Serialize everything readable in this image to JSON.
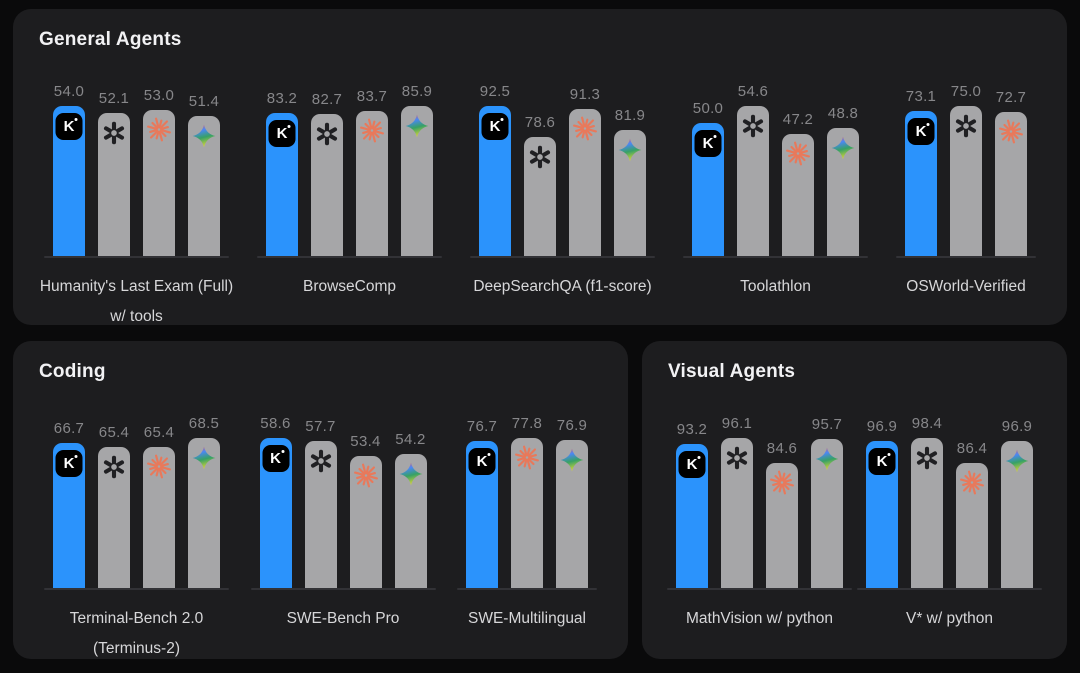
{
  "colors": {
    "page_background": "#0a0a0b",
    "panel_background": "#1d1d1f",
    "kimi_bar_blue": "#2b93fc",
    "default_bar_gray": "#a6a6a8",
    "value_label_gray": "#87878a",
    "benchmark_label_gray": "#d7d7d9",
    "title_white": "#f2f2f4",
    "claude_coral": "#e8795b",
    "openai_dark": "#202023",
    "baseline_gray": "#323236"
  },
  "icons": {
    "kimi_letter": "K",
    "series": [
      "kimi-icon",
      "openai-icon",
      "claude-icon",
      "gemini-icon"
    ]
  },
  "chart_data": [
    {
      "type": "bar",
      "title": "General Agents",
      "value_range": [
        0,
        100
      ],
      "legend_position": "none",
      "groups": [
        {
          "label_lines": [
            "Humanity's Last Exam (Full)",
            "w/ tools"
          ],
          "bars": [
            {
              "company": "kimi",
              "value": "54.0"
            },
            {
              "company": "openai",
              "value": "52.1"
            },
            {
              "company": "claude",
              "value": "53.0"
            },
            {
              "company": "gemini",
              "value": "51.4"
            }
          ]
        },
        {
          "label_lines": [
            "BrowseComp"
          ],
          "bars": [
            {
              "company": "kimi",
              "value": "83.2"
            },
            {
              "company": "openai",
              "value": "82.7"
            },
            {
              "company": "claude",
              "value": "83.7"
            },
            {
              "company": "gemini",
              "value": "85.9"
            }
          ]
        },
        {
          "label_lines": [
            "DeepSearchQA (f1-score)"
          ],
          "bars": [
            {
              "company": "kimi",
              "value": "92.5"
            },
            {
              "company": "openai",
              "value": "78.6"
            },
            {
              "company": "claude",
              "value": "91.3"
            },
            {
              "company": "gemini",
              "value": "81.9"
            }
          ]
        },
        {
          "label_lines": [
            "Toolathlon"
          ],
          "bars": [
            {
              "company": "kimi",
              "value": "50.0"
            },
            {
              "company": "openai",
              "value": "54.6"
            },
            {
              "company": "claude",
              "value": "47.2"
            },
            {
              "company": "gemini",
              "value": "48.8"
            }
          ]
        },
        {
          "label_lines": [
            "OSWorld-Verified"
          ],
          "bars": [
            {
              "company": "kimi",
              "value": "73.1"
            },
            {
              "company": "openai",
              "value": "75.0"
            },
            {
              "company": "claude",
              "value": "72.7"
            }
          ]
        }
      ]
    },
    {
      "type": "bar",
      "title": "Coding",
      "value_range": [
        0,
        100
      ],
      "legend_position": "none",
      "groups": [
        {
          "label_lines": [
            "Terminal-Bench 2.0",
            "(Terminus-2)"
          ],
          "bars": [
            {
              "company": "kimi",
              "value": "66.7"
            },
            {
              "company": "openai",
              "value": "65.4"
            },
            {
              "company": "claude",
              "value": "65.4"
            },
            {
              "company": "gemini",
              "value": "68.5"
            }
          ]
        },
        {
          "label_lines": [
            "SWE-Bench Pro"
          ],
          "bars": [
            {
              "company": "kimi",
              "value": "58.6"
            },
            {
              "company": "openai",
              "value": "57.7"
            },
            {
              "company": "claude",
              "value": "53.4"
            },
            {
              "company": "gemini",
              "value": "54.2"
            }
          ]
        },
        {
          "label_lines": [
            "SWE-Multilingual"
          ],
          "bars": [
            {
              "company": "kimi",
              "value": "76.7"
            },
            {
              "company": "claude",
              "value": "77.8"
            },
            {
              "company": "gemini",
              "value": "76.9"
            }
          ]
        }
      ]
    },
    {
      "type": "bar",
      "title": "Visual Agents",
      "value_range": [
        0,
        100
      ],
      "legend_position": "none",
      "groups": [
        {
          "label_lines": [
            "MathVision w/ python"
          ],
          "bars": [
            {
              "company": "kimi",
              "value": "93.2"
            },
            {
              "company": "openai",
              "value": "96.1"
            },
            {
              "company": "claude",
              "value": "84.6"
            },
            {
              "company": "gemini",
              "value": "95.7"
            }
          ]
        },
        {
          "label_lines": [
            "V* w/ python"
          ],
          "bars": [
            {
              "company": "kimi",
              "value": "96.9"
            },
            {
              "company": "openai",
              "value": "98.4"
            },
            {
              "company": "claude",
              "value": "86.4"
            },
            {
              "company": "gemini",
              "value": "96.9"
            }
          ]
        }
      ]
    }
  ]
}
